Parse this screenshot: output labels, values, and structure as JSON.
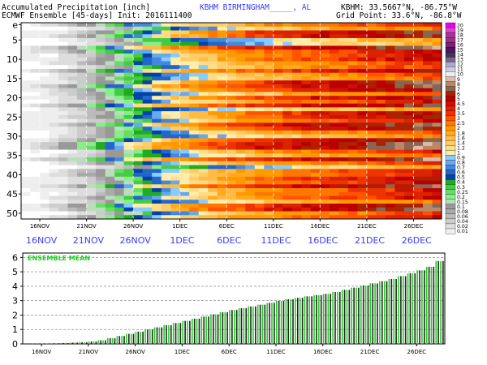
{
  "header": {
    "line1_left": "Accumulated Precipitation [inch]",
    "line1_center": "KBHM BIRMINGHAM_____, AL",
    "line1_right": "KBHM: 33.5667°N, -86.75°W",
    "line2_left": "ECMWF Ensemble [45-days] Init: 2016111400",
    "line2_right": "Grid Point: 33.6°N, -86.8°W"
  },
  "colors": {
    "ensemble_mean_label": "#22cc22",
    "mean_bar_green": "#22cc22",
    "mean_bar_dark": "#222222",
    "date_label_blue": "#3a3aff"
  },
  "chart_data": [
    {
      "type": "heatmap",
      "title": "Accumulated Precipitation [inch]",
      "ylabel": "",
      "yticks": [
        "e",
        "5",
        "10",
        "15",
        "20",
        "25",
        "30",
        "35",
        "40",
        "45",
        "50"
      ],
      "x_tick_labels_inner": [
        "16NOV",
        "21NOV",
        "26NOV",
        "1DEC",
        "6DEC",
        "11DEC",
        "16DEC",
        "21DEC",
        "26DEC"
      ],
      "x_tick_labels_outer": [
        "16NOV",
        "21NOV",
        "26NOV",
        "1DEC",
        "6DEC",
        "11DEC",
        "16DEC",
        "21DEC",
        "26DEC"
      ],
      "members": 51,
      "days": 45,
      "grid": true,
      "legend": {
        "placement": "right",
        "levels": [
          "20",
          "19",
          "18",
          "17",
          "16",
          "15",
          "14",
          "13",
          "12",
          "11",
          "10",
          "9",
          "8",
          "7",
          "6",
          "5",
          "4.5",
          "4",
          "3.5",
          "3",
          "2.5",
          "2",
          "1.8",
          "1.6",
          "1.4",
          "1.2",
          "1",
          "0.9",
          "0.8",
          "0.7",
          "0.6",
          "0.5",
          "0.4",
          "0.3",
          "0.25",
          "0.2",
          "0.15",
          "0.1",
          "0.08",
          "0.06",
          "0.04",
          "0.02",
          "0.01"
        ],
        "colors": [
          "#ee00ee",
          "#dd44cc",
          "#aa3399",
          "#993388",
          "#772277",
          "#551166",
          "#443355",
          "#776688",
          "#aaaacc",
          "#ccccdd",
          "#eeeeee",
          "#ddbbaa",
          "#bb8866",
          "#886655",
          "#aa2200",
          "#bb0000",
          "#cc1100",
          "#dd2200",
          "#ee3300",
          "#ff5500",
          "#ff7700",
          "#ff9900",
          "#ffaa22",
          "#ffbb44",
          "#ffcc66",
          "#ffdd88",
          "#ffeeaa",
          "#88ccff",
          "#66aaee",
          "#4488dd",
          "#2266cc",
          "#0044aa",
          "#22aa22",
          "#44cc44",
          "#66dd66",
          "#88ee88",
          "#bbddbb",
          "#999999",
          "#aaaaaa",
          "#bbbbbb",
          "#cccccc",
          "#dddddd",
          "#eeeeee"
        ]
      }
    },
    {
      "type": "bar",
      "title": "ENSEMBLE MEAN",
      "ylim": [
        0,
        6.3
      ],
      "yticks": [
        "0",
        "1",
        "2",
        "3",
        "4",
        "5",
        "6"
      ],
      "x_tick_labels": [
        "16NOV",
        "21NOV",
        "26NOV",
        "1DEC",
        "6DEC",
        "11DEC",
        "16DEC",
        "21DEC",
        "26DEC"
      ],
      "grid": true,
      "values": [
        0.01,
        0.02,
        0.03,
        0.04,
        0.06,
        0.09,
        0.12,
        0.17,
        0.25,
        0.4,
        0.55,
        0.7,
        0.85,
        1.0,
        1.15,
        1.3,
        1.45,
        1.6,
        1.75,
        1.9,
        2.05,
        2.2,
        2.35,
        2.48,
        2.6,
        2.72,
        2.85,
        2.98,
        3.1,
        3.2,
        3.3,
        3.38,
        3.47,
        3.6,
        3.75,
        3.9,
        4.05,
        4.2,
        4.35,
        4.5,
        4.7,
        4.9,
        5.1,
        5.35,
        5.75
      ]
    }
  ]
}
